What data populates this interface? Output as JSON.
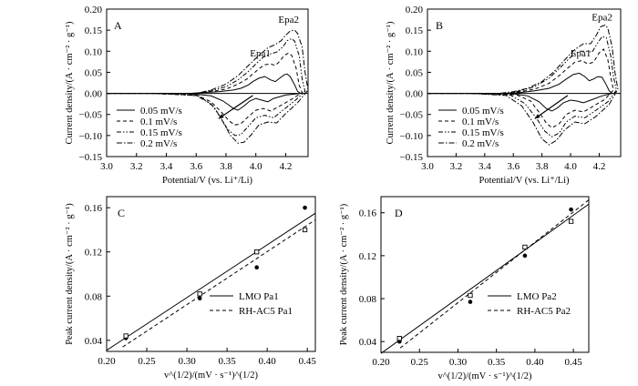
{
  "figure": {
    "panels": [
      {
        "id": "A",
        "type": "line",
        "panel_label": "A",
        "xlabel": "Potential/V (vs. Li⁺/Li)",
        "ylabel": "Current density/(A · cm⁻² · g⁻¹)",
        "xlim": [
          3.0,
          4.35
        ],
        "ylim": [
          -0.15,
          0.2
        ],
        "xticks": [
          "3.0",
          "3.2",
          "3.4",
          "3.6",
          "3.8",
          "4.0",
          "4.2"
        ],
        "yticks": [
          "−0.15",
          "−0.10",
          "−0.05",
          "0.00",
          "0.05",
          "0.10",
          "0.15",
          "0.20"
        ],
        "annotations": [
          "Epa1",
          "Epa2"
        ],
        "series": [
          {
            "name": "0.05 mV/s",
            "style": "solid",
            "x": [
              3.0,
              3.55,
              3.65,
              3.75,
              3.85,
              3.9,
              3.95,
              3.98,
              4.02,
              4.06,
              4.1,
              4.13,
              4.16,
              4.19,
              4.21,
              4.23,
              4.26,
              4.28,
              4.3,
              4.2,
              4.12,
              4.08,
              4.04,
              4.0,
              3.96,
              3.92,
              3.88,
              3.85,
              3.82,
              3.78,
              3.7,
              3.6,
              3.5,
              3.3
            ],
            "y": [
              0.0,
              0.0,
              0.002,
              0.004,
              0.008,
              0.012,
              0.02,
              0.028,
              0.036,
              0.04,
              0.032,
              0.028,
              0.036,
              0.044,
              0.046,
              0.04,
              0.02,
              0.005,
              0.0,
              -0.004,
              -0.012,
              -0.02,
              -0.016,
              -0.012,
              -0.018,
              -0.03,
              -0.04,
              -0.036,
              -0.028,
              -0.018,
              -0.006,
              -0.002,
              0.0,
              0.0
            ]
          },
          {
            "name": "0.1 mV/s",
            "style": "dash",
            "x": [
              3.0,
              3.6,
              3.7,
              3.8,
              3.88,
              3.94,
              3.98,
              4.02,
              4.06,
              4.1,
              4.13,
              4.16,
              4.19,
              4.22,
              4.24,
              4.27,
              4.29,
              4.31,
              4.25,
              4.16,
              4.1,
              4.05,
              4.0,
              3.95,
              3.9,
              3.86,
              3.82,
              3.77,
              3.7,
              3.6,
              3.3
            ],
            "y": [
              0.0,
              0.0,
              0.004,
              0.01,
              0.022,
              0.034,
              0.046,
              0.058,
              0.068,
              0.07,
              0.066,
              0.076,
              0.09,
              0.096,
              0.09,
              0.06,
              0.02,
              0.002,
              -0.012,
              -0.03,
              -0.042,
              -0.036,
              -0.04,
              -0.055,
              -0.072,
              -0.075,
              -0.065,
              -0.045,
              -0.02,
              -0.004,
              0.0
            ]
          },
          {
            "name": "0.15 mV/s",
            "style": "dashdotdot",
            "x": [
              3.0,
              3.6,
              3.7,
              3.8,
              3.88,
              3.95,
              4.0,
              4.05,
              4.1,
              4.14,
              4.18,
              4.21,
              4.24,
              4.26,
              4.29,
              4.31,
              4.33,
              4.26,
              4.18,
              4.12,
              4.06,
              4.0,
              3.95,
              3.9,
              3.86,
              3.81,
              3.76,
              3.7,
              3.6,
              3.3
            ],
            "y": [
              0.0,
              0.0,
              0.006,
              0.016,
              0.032,
              0.052,
              0.07,
              0.086,
              0.094,
              0.098,
              0.11,
              0.125,
              0.13,
              0.124,
              0.09,
              0.035,
              0.005,
              -0.018,
              -0.04,
              -0.058,
              -0.052,
              -0.058,
              -0.078,
              -0.098,
              -0.1,
              -0.085,
              -0.055,
              -0.025,
              -0.005,
              0.0
            ]
          },
          {
            "name": "0.2 mV/s",
            "style": "dashdot",
            "x": [
              3.0,
              3.6,
              3.7,
              3.8,
              3.88,
              3.95,
              4.02,
              4.08,
              4.13,
              4.17,
              4.2,
              4.23,
              4.26,
              4.28,
              4.31,
              4.33,
              4.35,
              4.28,
              4.2,
              4.14,
              4.08,
              4.02,
              3.97,
              3.92,
              3.88,
              3.83,
              3.78,
              3.72,
              3.62,
              3.4
            ],
            "y": [
              0.0,
              0.0,
              0.008,
              0.022,
              0.042,
              0.066,
              0.09,
              0.108,
              0.116,
              0.125,
              0.138,
              0.148,
              0.15,
              0.142,
              0.11,
              0.05,
              0.008,
              -0.022,
              -0.048,
              -0.07,
              -0.068,
              -0.075,
              -0.098,
              -0.116,
              -0.118,
              -0.1,
              -0.068,
              -0.032,
              -0.006,
              0.0
            ]
          }
        ]
      },
      {
        "id": "B",
        "type": "line",
        "panel_label": "B",
        "xlabel": "Potential/V (vs. Li⁺/Li)",
        "ylabel": "Current density/(A · cm⁻² · g⁻¹)",
        "xlim": [
          3.0,
          4.35
        ],
        "ylim": [
          -0.15,
          0.2
        ],
        "xticks": [
          "3.0",
          "3.2",
          "3.4",
          "3.6",
          "3.8",
          "4.0",
          "4.2"
        ],
        "yticks": [
          "−0.15",
          "−0.10",
          "−0.05",
          "0.00",
          "0.05",
          "0.10",
          "0.15",
          "0.20"
        ],
        "annotations": [
          "Epa1",
          "Epa2"
        ],
        "series": [
          {
            "name": "0.05 mV/s",
            "style": "solid",
            "x": [
              3.0,
              3.55,
              3.65,
              3.75,
              3.85,
              3.92,
              3.97,
              4.02,
              4.06,
              4.1,
              4.13,
              4.16,
              4.19,
              4.22,
              4.25,
              4.27,
              4.29,
              4.22,
              4.14,
              4.09,
              4.04,
              4.0,
              3.95,
              3.91,
              3.87,
              3.83,
              3.78,
              3.7,
              3.6,
              3.3
            ],
            "y": [
              0.0,
              0.0,
              0.002,
              0.006,
              0.012,
              0.022,
              0.034,
              0.045,
              0.048,
              0.04,
              0.03,
              0.034,
              0.04,
              0.038,
              0.02,
              0.006,
              0.0,
              -0.006,
              -0.016,
              -0.022,
              -0.018,
              -0.016,
              -0.022,
              -0.034,
              -0.042,
              -0.036,
              -0.02,
              -0.006,
              -0.001,
              0.0
            ]
          },
          {
            "name": "0.1 mV/s",
            "style": "dash",
            "x": [
              3.0,
              3.55,
              3.65,
              3.75,
              3.85,
              3.92,
              3.98,
              4.03,
              4.08,
              4.12,
              4.16,
              4.2,
              4.23,
              4.26,
              4.28,
              4.3,
              4.24,
              4.15,
              4.09,
              4.03,
              3.97,
              3.92,
              3.87,
              3.83,
              3.78,
              3.72,
              3.62,
              3.3
            ],
            "y": [
              0.0,
              0.0,
              0.004,
              0.01,
              0.024,
              0.042,
              0.06,
              0.074,
              0.078,
              0.07,
              0.074,
              0.096,
              0.105,
              0.08,
              0.04,
              0.008,
              -0.014,
              -0.032,
              -0.044,
              -0.04,
              -0.05,
              -0.072,
              -0.082,
              -0.07,
              -0.045,
              -0.018,
              -0.003,
              0.0
            ]
          },
          {
            "name": "0.15 mV/s",
            "style": "dashdotdot",
            "x": [
              3.0,
              3.55,
              3.65,
              3.75,
              3.85,
              3.93,
              4.0,
              4.06,
              4.11,
              4.15,
              4.19,
              4.22,
              4.25,
              4.28,
              4.3,
              4.32,
              4.26,
              4.17,
              4.1,
              4.03,
              3.97,
              3.92,
              3.87,
              3.82,
              3.76,
              3.68,
              3.58,
              3.3
            ],
            "y": [
              0.0,
              0.0,
              0.006,
              0.016,
              0.036,
              0.062,
              0.086,
              0.1,
              0.1,
              0.098,
              0.12,
              0.135,
              0.132,
              0.09,
              0.04,
              0.008,
              -0.02,
              -0.042,
              -0.058,
              -0.054,
              -0.068,
              -0.094,
              -0.103,
              -0.09,
              -0.058,
              -0.024,
              -0.004,
              0.0
            ]
          },
          {
            "name": "0.2 mV/s",
            "style": "dashdot",
            "x": [
              3.0,
              3.5,
              3.6,
              3.7,
              3.8,
              3.88,
              3.96,
              4.03,
              4.09,
              4.14,
              4.18,
              4.21,
              4.24,
              4.26,
              4.29,
              4.31,
              4.33,
              4.27,
              4.18,
              4.1,
              4.03,
              3.96,
              3.9,
              3.85,
              3.8,
              3.74,
              3.66,
              3.55,
              3.3
            ],
            "y": [
              0.0,
              0.0,
              0.004,
              0.012,
              0.028,
              0.05,
              0.08,
              0.104,
              0.118,
              0.118,
              0.138,
              0.158,
              0.162,
              0.155,
              0.11,
              0.05,
              0.01,
              -0.026,
              -0.054,
              -0.072,
              -0.068,
              -0.086,
              -0.112,
              -0.122,
              -0.108,
              -0.07,
              -0.03,
              -0.005,
              0.0
            ]
          }
        ]
      },
      {
        "id": "C",
        "type": "scatter",
        "panel_label": "C",
        "xlabel": "v^(1/2)/(mV · s⁻¹)^(1/2)",
        "ylabel": "Peak current density/(A · cm⁻² · g⁻¹)",
        "xlim": [
          0.2,
          0.46
        ],
        "ylim": [
          0.03,
          0.17
        ],
        "xticks": [
          "0.20",
          "0.25",
          "0.30",
          "0.35",
          "0.40",
          "0.45"
        ],
        "yticks": [
          "0.04",
          "0.08",
          "0.12",
          "0.16"
        ],
        "series": [
          {
            "name": "LMO Pa1",
            "marker": "filled-circle",
            "line": "solid",
            "x": [
              0.224,
              0.316,
              0.387,
              0.447
            ],
            "y": [
              0.042,
              0.078,
              0.106,
              0.16
            ],
            "fit": {
              "x": [
                0.2,
                0.46
              ],
              "y": [
                0.031,
                0.155
              ]
            }
          },
          {
            "name": "RH-AC5 Pa1",
            "marker": "open-square",
            "line": "dash",
            "x": [
              0.224,
              0.316,
              0.387,
              0.447
            ],
            "y": [
              0.044,
              0.082,
              0.12,
              0.14
            ],
            "fit": {
              "x": [
                0.22,
                0.46
              ],
              "y": [
                0.034,
                0.149
              ]
            }
          }
        ]
      },
      {
        "id": "D",
        "type": "scatter",
        "panel_label": "D",
        "xlabel": "v^(1/2)/(mV · s⁻¹)^(1/2)",
        "ylabel": "Peak current density/(A · cm⁻² · g⁻¹)",
        "xlim": [
          0.2,
          0.47
        ],
        "ylim": [
          0.03,
          0.175
        ],
        "xticks": [
          "0.20",
          "0.25",
          "0.30",
          "0.35",
          "0.40",
          "0.45"
        ],
        "yticks": [
          "0.04",
          "0.08",
          "0.12",
          "0.16"
        ],
        "series": [
          {
            "name": "LMO Pa2",
            "marker": "filled-circle",
            "line": "solid",
            "x": [
              0.224,
              0.316,
              0.387,
              0.447
            ],
            "y": [
              0.04,
              0.077,
              0.12,
              0.163
            ],
            "fit": {
              "x": [
                0.2,
                0.47
              ],
              "y": [
                0.029,
                0.168
              ]
            }
          },
          {
            "name": "RH-AC5 Pa2",
            "marker": "open-square",
            "line": "dash",
            "x": [
              0.224,
              0.316,
              0.387,
              0.447
            ],
            "y": [
              0.043,
              0.083,
              0.128,
              0.152
            ],
            "fit": {
              "x": [
                0.225,
                0.47
              ],
              "y": [
                0.034,
                0.172
              ]
            }
          }
        ]
      }
    ]
  }
}
